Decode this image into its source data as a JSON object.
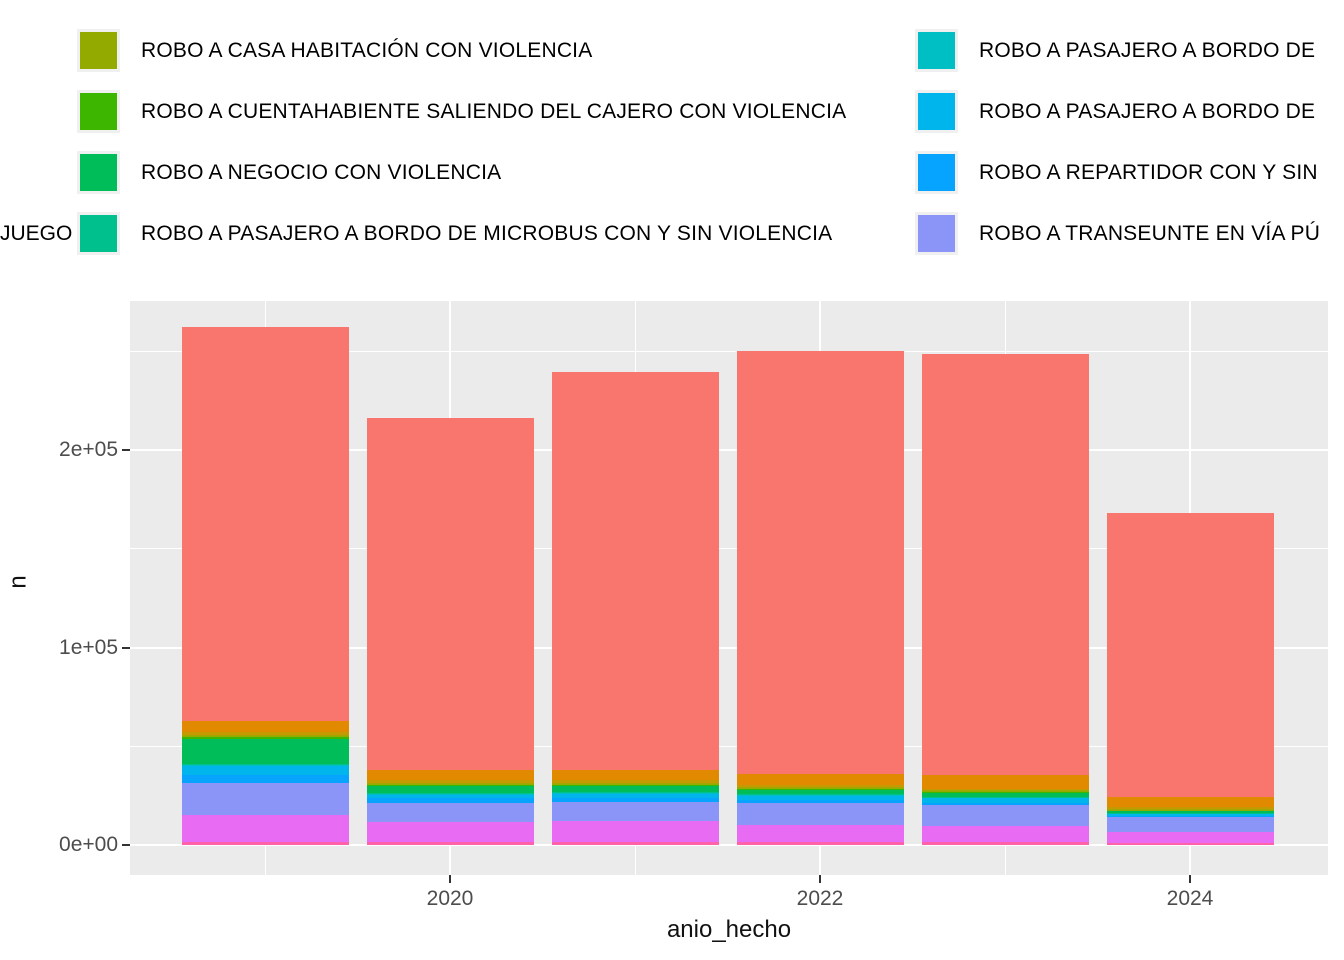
{
  "legend": {
    "left_partial_label": "JUEGO",
    "middle_column": [
      {
        "label": "ROBO A CASA HABITACIÓN CON VIOLENCIA",
        "color": "#93AA00"
      },
      {
        "label": "ROBO A CUENTAHABIENTE SALIENDO DEL CAJERO CON VIOLENCIA",
        "color": "#3DB600"
      },
      {
        "label": "ROBO A NEGOCIO CON VIOLENCIA",
        "color": "#00BC59"
      },
      {
        "label": "ROBO A PASAJERO A BORDO DE MICROBUS CON Y SIN VIOLENCIA",
        "color": "#00C08E"
      }
    ],
    "right_column": [
      {
        "label": "ROBO A PASAJERO A BORDO DE",
        "color": "#00BFC4"
      },
      {
        "label": "ROBO A PASAJERO A BORDO DE",
        "color": "#00B5EB"
      },
      {
        "label": "ROBO A REPARTIDOR CON Y SIN",
        "color": "#06A4FF"
      },
      {
        "label": "ROBO A TRANSEUNTE EN VÍA PÚ",
        "color": "#8B95F8"
      }
    ]
  },
  "chart_data": {
    "type": "bar",
    "stacked": true,
    "xlabel": "anio_hecho",
    "ylabel": "n",
    "x": [
      2019,
      2020,
      2021,
      2022,
      2023,
      2024
    ],
    "x_ticks": {
      "values": [
        2020,
        2022,
        2024
      ],
      "labels": [
        "2020",
        "2022",
        "2024"
      ]
    },
    "x_minor": [
      2019,
      2021,
      2023
    ],
    "y_ticks": {
      "values": [
        0,
        100000,
        200000
      ],
      "labels": [
        "0e+00",
        "1e+05",
        "2e+05"
      ]
    },
    "y_minor": [
      50000,
      150000,
      250000
    ],
    "ylim": [
      0,
      275000
    ],
    "panel_background": "#EBEBEB",
    "series": [
      {
        "legend_label": "",
        "color": "#F8766D",
        "values": [
          199300,
          178200,
          201500,
          214000,
          213500,
          143600
        ]
      },
      {
        "legend_label": "",
        "color": "#E18A00",
        "values": [
          5900,
          5100,
          5100,
          5800,
          6700,
          5100
        ]
      },
      {
        "legend_label": "",
        "color": "#C49A00",
        "values": [
          1400,
          1300,
          1200,
          1000,
          1000,
          1200
        ]
      },
      {
        "legend_label": "JUEGO",
        "color": "#A3A500",
        "values": [
          400,
          400,
          400,
          400,
          400,
          300
        ]
      },
      {
        "legend_label": "ROBO A CASA HABITACIÓN CON VIOLENCIA",
        "color": "#93AA00",
        "values": [
          400,
          400,
          400,
          300,
          300,
          200
        ]
      },
      {
        "legend_label": "ROBO A CUENTAHABIENTE SALIENDO DEL CAJERO CON VIOLENCIA",
        "color": "#3DB600",
        "values": [
          1000,
          800,
          800,
          600,
          600,
          300
        ]
      },
      {
        "legend_label": "ROBO A NEGOCIO CON VIOLENCIA",
        "color": "#00BC59",
        "values": [
          12700,
          3400,
          3200,
          2300,
          1900,
          1000
        ]
      },
      {
        "legend_label": "ROBO A PASAJERO A BORDO DE MICROBUS CON Y SIN VIOLENCIA",
        "color": "#00C08E",
        "values": [
          600,
          400,
          400,
          300,
          300,
          200
        ]
      },
      {
        "legend_label": "ROBO A PASAJERO A BORDO DE",
        "color": "#00BFC4",
        "values": [
          600,
          400,
          400,
          300,
          300,
          200
        ]
      },
      {
        "legend_label": "ROBO A PASAJERO A BORDO DE",
        "color": "#00B5EB",
        "values": [
          4800,
          1800,
          2200,
          2400,
          2500,
          1000
        ]
      },
      {
        "legend_label": "ROBO A REPARTIDOR CON Y SIN",
        "color": "#06A4FF",
        "values": [
          3800,
          2300,
          1700,
          1400,
          1200,
          800
        ]
      },
      {
        "legend_label": "ROBO A TRANSEUNTE EN VÍA PÚ",
        "color": "#8B95F8",
        "values": [
          16400,
          10100,
          10100,
          10900,
          10300,
          7600
        ]
      },
      {
        "legend_label": "",
        "color": "#E76BF3",
        "values": [
          13700,
          10100,
          10600,
          9000,
          8500,
          5400
        ]
      },
      {
        "legend_label": "",
        "color": "#FF62A8",
        "values": [
          1300,
          1300,
          1300,
          1300,
          1300,
          1000
        ]
      }
    ]
  }
}
